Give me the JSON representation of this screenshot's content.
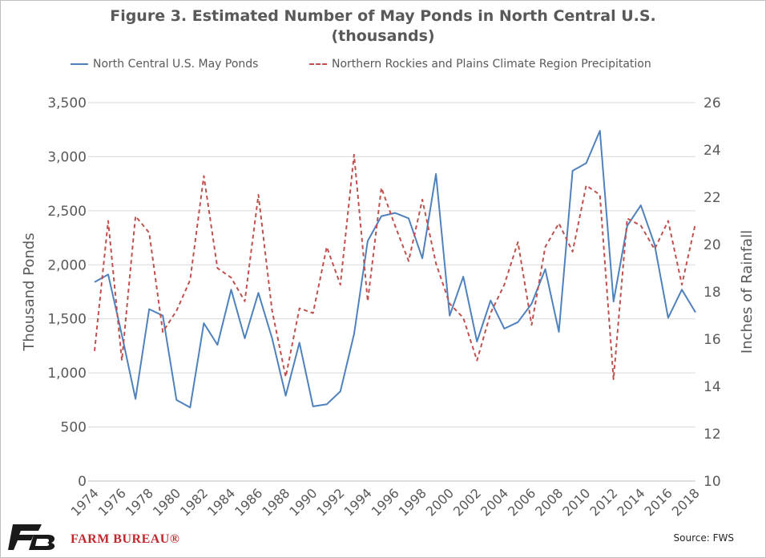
{
  "title_line1": "Figure 3. Estimated Number of May Ponds in North Central U.S.",
  "title_line2": "(thousands)",
  "brand": "FARM BUREAU®",
  "source": "Source: FWS",
  "colors": {
    "ponds": "#4f81bd",
    "precip": "#c0504d",
    "axis_text": "#595959",
    "grid": "#d9d9d9",
    "brand": "#c0282d"
  },
  "chart_data": {
    "type": "line",
    "x": [
      1974,
      1975,
      1976,
      1977,
      1978,
      1979,
      1980,
      1981,
      1982,
      1983,
      1984,
      1985,
      1986,
      1987,
      1988,
      1989,
      1990,
      1991,
      1992,
      1993,
      1994,
      1995,
      1996,
      1997,
      1998,
      1999,
      2000,
      2001,
      2002,
      2003,
      2004,
      2005,
      2006,
      2007,
      2008,
      2009,
      2010,
      2011,
      2012,
      2013,
      2014,
      2015,
      2016,
      2017,
      2018
    ],
    "x_tick_labels": [
      "1974",
      "1976",
      "1978",
      "1980",
      "1982",
      "1984",
      "1986",
      "1988",
      "1990",
      "1992",
      "1994",
      "1996",
      "1998",
      "2000",
      "2002",
      "2004",
      "2006",
      "2008",
      "2010",
      "2012",
      "2014",
      "2016",
      "2018"
    ],
    "series": [
      {
        "name": "North Central U.S. May Ponds",
        "axis": "left",
        "style": "solid",
        "values": [
          1840,
          1910,
          1350,
          760,
          1590,
          1530,
          750,
          680,
          1460,
          1260,
          1770,
          1320,
          1740,
          1320,
          790,
          1280,
          690,
          710,
          830,
          1360,
          2220,
          2450,
          2480,
          2430,
          2060,
          2840,
          1530,
          1890,
          1290,
          1670,
          1410,
          1470,
          1640,
          1960,
          1380,
          2870,
          2940,
          3240,
          1660,
          2360,
          2550,
          2190,
          1510,
          1770,
          1560
        ]
      },
      {
        "name": "Northern Rockies and Plains Climate Region Precipitation",
        "axis": "right",
        "style": "dashed",
        "values": [
          15.5,
          21.0,
          15.1,
          21.2,
          20.5,
          16.3,
          17.2,
          18.5,
          22.9,
          19.0,
          18.6,
          17.6,
          22.1,
          17.2,
          14.4,
          17.3,
          17.1,
          19.9,
          18.3,
          23.8,
          17.6,
          22.4,
          20.8,
          19.3,
          21.9,
          19.2,
          17.5,
          16.9,
          15.1,
          17.1,
          18.3,
          20.1,
          16.6,
          19.9,
          20.9,
          19.7,
          22.5,
          22.1,
          14.3,
          21.1,
          20.8,
          19.8,
          21.0,
          18.3,
          20.9
        ]
      }
    ],
    "y_left": {
      "label": "Thousand Ponds",
      "min": 0,
      "max": 3500,
      "ticks": [
        0,
        500,
        1000,
        1500,
        2000,
        2500,
        3000,
        3500
      ],
      "tick_labels": [
        "0",
        "500",
        "1,000",
        "1,500",
        "2,000",
        "2,500",
        "3,000",
        "3,500"
      ]
    },
    "y_right": {
      "label": "Inches of Rainfall",
      "min": 10,
      "max": 26,
      "ticks": [
        10,
        12,
        14,
        16,
        18,
        20,
        22,
        24,
        26
      ],
      "tick_labels": [
        "10",
        "12",
        "14",
        "16",
        "18",
        "20",
        "22",
        "24",
        "26"
      ]
    },
    "grid": true,
    "legend_position": "top"
  }
}
